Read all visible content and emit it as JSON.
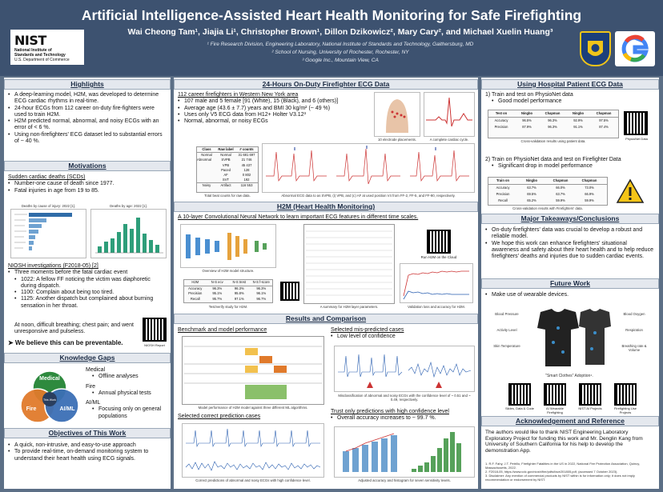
{
  "header": {
    "title": "Artificial Intelligence-Assisted Heart Health Monitoring for Safe Firefighting",
    "authors": "Wai Cheong Tam¹, Jiajia Li¹, Christopher Brown¹, Dillon Dzikowicz², Mary Cary², and Michael Xuelin Huang³",
    "aff1": "¹ Fire Research Division, Engineering Laboratory, National Institute of Standards and Technology, Gaithersburg, MD",
    "aff2": "² School of Nursing, University of Rochester, Rochester, NY",
    "aff3": "³ Google Inc., Mountain View, CA",
    "nist_logo": "NIST",
    "nist_line1": "National Institute of",
    "nist_line2": "Standards and Technology",
    "nist_line3": "U.S. Department of Commerce",
    "google_logo": "G",
    "google_color": "#4285f4"
  },
  "left": {
    "highlights_title": "Highlights",
    "highlights": [
      "A deep-learning model, H2M, was developed to determine ECG cardiac rhythms in real-time.",
      "24-hour ECGs from 112 career on-duty fire-fighters were used to train H2M.",
      "H2M predicted normal, abnormal, and noisy ECGs with an error of < 6 %.",
      "Using non-firefighters' ECG dataset led to substantial errors of ~ 40 %."
    ],
    "motivations_title": "Motivations",
    "scd_head": "Sudden cardiac deaths (SCDs)",
    "scd_items": [
      "Number-one cause of death since 1977.",
      "Fatal injuries in age from 19 to 85."
    ],
    "chart1_title": "Deaths by cause of injury: 2022 [1].",
    "chart2_title": "Deaths by age: 2022 [1].",
    "niosh_head": "NIOSH investigations (F2018-05) [2]",
    "niosh_item": "Three moments before the fatal cardiac event",
    "niosh_sub": [
      "1022: A fellow FF noticing the victim was diaphoretic during dispatch.",
      "1100: Complain about being too tired.",
      "1125: Another dispatch but complained about burning sensation in her throat."
    ],
    "niosh_end": "At noon, difficult breathing; chest pain; and went unresponsive and pulseless.",
    "believe": "➤ We believe this can be preventable.",
    "qr_label": "NIOSH Report",
    "gaps_title": "Knowledge Gaps",
    "venn": [
      "Medical",
      "Fire",
      "AI/ML",
      "This Work"
    ],
    "gaps": [
      "Medical",
      "Offline analyses",
      "Fire",
      "Annual physical tests",
      "AI/ML",
      "Focusing only on general populations"
    ],
    "objectives_title": "Objectives of This Work",
    "objectives": [
      "A quick, non-intrusive, and easy-to-use approach",
      "To provide real-time, on-demand monitoring system to understand their heart health using ECG signals."
    ]
  },
  "middle": {
    "ecg_title": "24-Hours On-Duty Firefighter ECG Data",
    "ecg_head": "112 career firefighters in Western New York area",
    "ecg_items": [
      "107 male and 5 female [91 (White), 15 (Black), and 6 (others)]",
      "Average age (43.6 ± 7.7) years and BMI 30 kg/m² (~ 49 %)",
      "Uses only V5 ECG data from H12+ Holter V3.12³",
      "Normal, abnormal, or noisy ECGs"
    ],
    "electrode_cap": "10 electrode placements.",
    "cycle_cap": "A complete cardiac cycle.",
    "table_cols": [
      "Class",
      "Raw label",
      "# counts"
    ],
    "table_rows": [
      [
        "Normal",
        "Normal",
        "31 681 697"
      ],
      [
        "Abnormal",
        "SVPB",
        "21 746"
      ],
      [
        "",
        "VPB",
        "45 437"
      ],
      [
        "",
        "Paced",
        "128"
      ],
      [
        "",
        "AF",
        "0 802"
      ],
      [
        "",
        "SVT",
        "192"
      ],
      [
        "Noisy",
        "Artifact",
        "116 553"
      ]
    ],
    "table_cap": "Total beat counts for raw data.",
    "ecg_cap": "Abnormal ECG data to as SVPB, (i) VPB, and (c) AF at used position V4 from FF-2, FF-5, and FF-90, respectively.",
    "h2m_title": "H2M (Heart Health Monitoring)",
    "h2m_head": "A 10-layer Convolutional Neural Network to learn important ECG features in different time scales.",
    "arch_cap": "Overview of H2M model structure.",
    "perf_cols": [
      "H2M",
      "N-S ecv",
      "N-S trest",
      "N-S f-score"
    ],
    "perf_rows": [
      [
        "Accuracy",
        "96.3%",
        "96.3%",
        "96.3%"
      ],
      [
        "Precision",
        "95.1%",
        "95.8%",
        "96.1%"
      ],
      [
        "Recall",
        "95.7%",
        "97.1%",
        "96.7%"
      ]
    ],
    "perf_cap": "Test/verify study for H2M.",
    "layers_cap": "A summary for H2M layer parameters.",
    "qr_label": "Run H2M on the Cloud",
    "loss_cap": "Validation loss and accuracy for H2M.",
    "results_title": "Results and Comparison",
    "bench_head": "Benchmark and model performance",
    "bench_cols": [
      "Method",
      "Class",
      "Predictions",
      "",
      "",
      "Acc.",
      "Prec.",
      "Recall",
      "Training Time",
      "Param."
    ],
    "bench_rows": [
      [
        "MLP",
        "C1",
        "33311",
        "112",
        "729",
        "89.6%",
        "84.4%",
        "91.6%",
        "2.4 s",
        "18 974"
      ],
      [
        "",
        "C2",
        "468",
        "4279",
        "1451",
        "",
        "",
        "",
        "",
        ""
      ],
      [
        "",
        "C3",
        "807",
        "3214",
        "3050",
        "",
        "",
        "",
        "",
        ""
      ],
      [
        "LSTM",
        "C1",
        "33071",
        "324",
        "808",
        "88.5%",
        "87.6%",
        "91.1%",
        "190.4 s",
        "81 287"
      ],
      [
        "",
        "C2",
        "2963",
        "2631",
        "1743",
        "",
        "",
        "",
        "",
        ""
      ],
      [
        "ResNet",
        "C1",
        "34040",
        "1286",
        "98",
        "92.9%",
        "92.1%",
        "94.0%",
        "20.9 s",
        "964 659"
      ],
      [
        "H2M",
        "C1",
        "33889",
        "84",
        "180",
        "94.8%",
        "93.7%",
        "95.2%",
        "6.2 s",
        "51 299"
      ],
      [
        "",
        "C2",
        "84",
        "5914",
        "250",
        "",
        "",
        "",
        "",
        ""
      ]
    ],
    "bench_cap": "Model performance of H2M model against three different ML algorithms.",
    "correct_head": "Selected correct prediction cases",
    "correct_cap": "Correct predictions of abnormal and noisy ECGs with high confidence level.",
    "mis_head": "Selected mis-predicted cases",
    "mis_item": "Low level of confidence",
    "mis_cap": "Misclassification of abnormal and noisy ECGs with the confidence level of ~ 0.51 and ~ 0.49, respectively.",
    "trust_head": "Trust only predictions with high confidence level",
    "trust_item": "Overall accuracy increases to ~ 99.7 %.",
    "trust_cap": "Adjusted accuracy and histogram for seven sensitivity levels."
  },
  "right": {
    "hosp_title": "Using Hospital Patient ECG Data",
    "hosp_1": "1) Train and test on PhysioNet data",
    "hosp_1b": "Good model performance",
    "hosp_1_cap": "Cross-validation results using patient data.",
    "hosp_qr": "PhysioNet Data",
    "hosp_2": "2) Train on PhysioNet data and test on Firefighter Data",
    "hosp_2b": "Significant drop in model performance",
    "hosp_2_cap": "Cross-validation results with Firefighters' data.",
    "t1_cols": [
      "Test on",
      "Ningbo",
      "Chapman",
      "Ningbo",
      "Chapman"
    ],
    "t1_rows": [
      [
        "Accuracy",
        "96.5%",
        "96.3%",
        "92.9%",
        "97.5%"
      ],
      [
        "Precision",
        "87.9%",
        "96.3%",
        "91.1%",
        "87.4%"
      ],
      [
        "Recall",
        "87.3%",
        "97.1%",
        "94.7%",
        "89.1%"
      ]
    ],
    "t2_cols": [
      "Train on",
      "Ningbo",
      "Chapman",
      "Chapman"
    ],
    "t2_rows": [
      [
        "Accuracy",
        "63.7%",
        "66.0%",
        "73.0%"
      ],
      [
        "Precision",
        "69.5%",
        "63.7%",
        "66.9%"
      ],
      [
        "Recall",
        "65.2%",
        "59.9%",
        "59.9%"
      ]
    ],
    "takeaways_title": "Major Takeaways/Conclusions",
    "takeaways": [
      "On-duty firefighters' data was crucial to develop a robust and reliable model.",
      "We hope this work can enhance firefighters' situational awareness and safety about their heart health and to help reduce firefighters' deaths and injuries due to sudden cardiac events."
    ],
    "future_title": "Future Work",
    "future_item": "Make use of wearable devices.",
    "shirt_labels": [
      "Blood Pressure",
      "Activity Level",
      "Skin Temperature",
      "Blood Oxygen",
      "Respiration",
      "Breathing rate & Volume"
    ],
    "shirt_cap": "\"Smart Clothes\" Adoption⁴.",
    "qr_labels": [
      "Slides, Data & Code",
      "AI Wearable Firefighting",
      "NIST AI Projects",
      "Firefighting Use Projects"
    ],
    "ack_title": "Acknowledgement and Reference",
    "ack": "The authors would like to thank NIST Engineering Laboratory Exploratory Project for funding this work and Mr. Denglin Kang from University of Southern California for his help to develop the demonstration App.",
    "refs": [
      "1. R.F. Fahy, J.T. Petrillo, Firefighter Fatalities in the US in 2022, National Fire Protection Association, Quincy, Massachusetts, 2022.",
      "2. F2018-05, https://www.cdc.gov/niosh/fire/pdfs/face201805.pdf, (accessed 7 October 2023).",
      "3. Disclaimer: Any mention of commercial products by NIST within is for information only; it does not imply recommendation or endorsement by NIST."
    ]
  },
  "colors": {
    "background": "#5c6f86",
    "header": "#3d5270",
    "section_header": "#e4e8ee",
    "fire": "#e07a2b",
    "medical": "#2e8a3e",
    "ai": "#3b6fb5",
    "warning": "#f5c518"
  }
}
